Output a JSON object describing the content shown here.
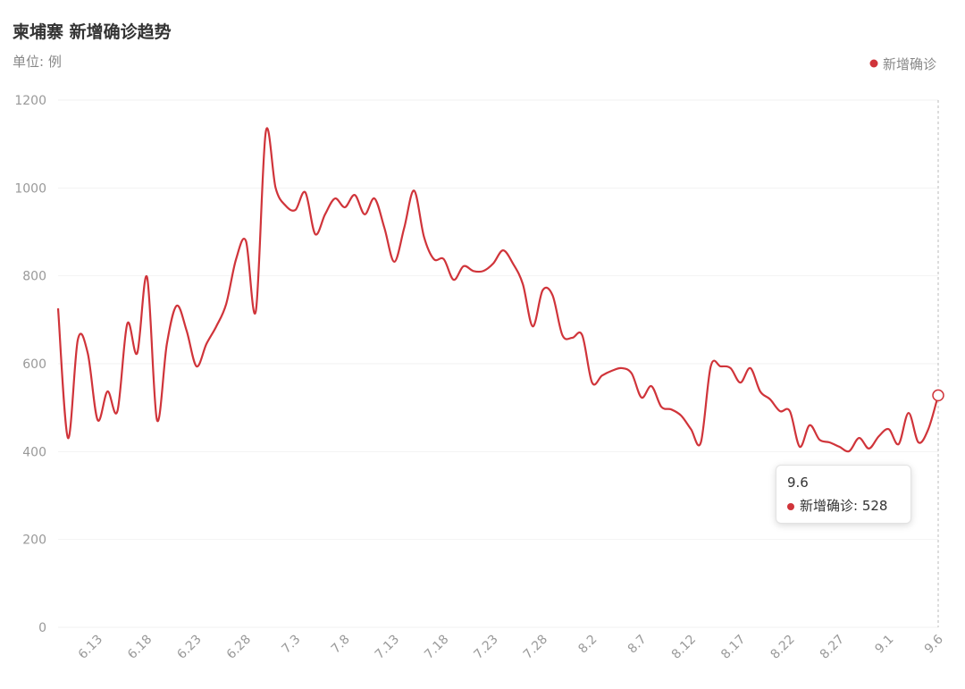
{
  "chart_data": {
    "type": "line",
    "title": "柬埔寨 新增确诊趋势",
    "subtitle": "单位: 例",
    "categories": [
      null,
      null,
      null,
      null,
      "6.13",
      null,
      null,
      null,
      null,
      "6.18",
      null,
      null,
      null,
      null,
      "6.23",
      null,
      null,
      null,
      null,
      "6.28",
      null,
      null,
      null,
      null,
      "7.3",
      null,
      null,
      null,
      null,
      "7.8",
      null,
      null,
      null,
      null,
      "7.13",
      null,
      null,
      null,
      null,
      "7.18",
      null,
      null,
      null,
      null,
      "7.23",
      null,
      null,
      null,
      null,
      "7.28",
      null,
      null,
      null,
      null,
      "8.2",
      null,
      null,
      null,
      null,
      "8.7",
      null,
      null,
      null,
      null,
      "8.12",
      null,
      null,
      null,
      null,
      "8.17",
      null,
      null,
      null,
      null,
      "8.22",
      null,
      null,
      null,
      null,
      "8.27",
      null,
      null,
      null,
      null,
      "9.1",
      null,
      null,
      null,
      null,
      "9.6"
    ],
    "series": [
      {
        "name": "新增确诊",
        "color": "#d0343a",
        "values": [
          726,
          431,
          655,
          624,
          472,
          537,
          492,
          691,
          624,
          797,
          472,
          645,
          732,
          675,
          594,
          645,
          685,
          736,
          838,
          879,
          720,
          1127,
          1000,
          960,
          950,
          990,
          895,
          940,
          976,
          956,
          984,
          940,
          976,
          909,
          832,
          909,
          994,
          889,
          838,
          838,
          791,
          822,
          811,
          811,
          828,
          858,
          828,
          781,
          685,
          767,
          756,
          665,
          659,
          665,
          557,
          573,
          584,
          590,
          578,
          523,
          549,
          502,
          496,
          482,
          451,
          421,
          594,
          594,
          590,
          557,
          590,
          537,
          519,
          492,
          492,
          411,
          460,
          427,
          421,
          411,
          401,
          431,
          407,
          435,
          451,
          417,
          488,
          421,
          451,
          528
        ]
      }
    ],
    "ylim": [
      0,
      1200
    ],
    "yticks": [
      0,
      200,
      400,
      600,
      800,
      1000,
      1200
    ],
    "grid": true,
    "legend": "top-right"
  }
}
